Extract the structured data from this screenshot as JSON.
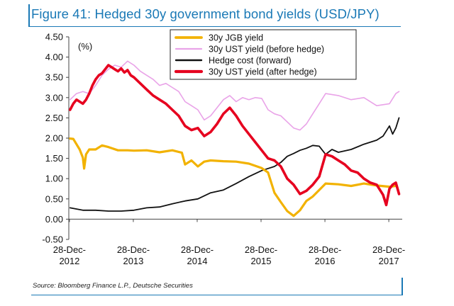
{
  "header": {
    "title": "Figure 41: Hedged 30y government bond yields (USD/JPY)"
  },
  "footer": {
    "source": "Source: Bloomberg Finance L.P., Deutsche Securities"
  },
  "colors": {
    "brand": "#1a79b6",
    "jgb": "#f2b200",
    "ust_before": "#e9a3e8",
    "hedge_cost": "#111111",
    "ust_after": "#e6001f"
  },
  "chart_data": {
    "type": "line",
    "title": "Figure 41: Hedged 30y government bond yields (USD/JPY)",
    "unit_label": "(%)",
    "xlabel": "",
    "ylabel": "(%)",
    "ylim": [
      -0.5,
      4.5
    ],
    "xlim": [
      2012.98,
      2018.2
    ],
    "y_ticks": [
      {
        "value": 4.5,
        "label": "4.50"
      },
      {
        "value": 4.0,
        "label": "4.00"
      },
      {
        "value": 3.5,
        "label": "3.50"
      },
      {
        "value": 3.0,
        "label": "3.00"
      },
      {
        "value": 2.5,
        "label": "2.50"
      },
      {
        "value": 2.0,
        "label": "2.00"
      },
      {
        "value": 1.5,
        "label": "1.50"
      },
      {
        "value": 1.0,
        "label": "1.00"
      },
      {
        "value": 0.5,
        "label": "0.50"
      },
      {
        "value": 0.0,
        "label": "0.00"
      },
      {
        "value": -0.5,
        "label": "-0.50"
      }
    ],
    "x_ticks": [
      {
        "value": 2012.99,
        "line1": "28-Dec-",
        "line2": "2012"
      },
      {
        "value": 2013.99,
        "line1": "28-Dec-",
        "line2": "2013"
      },
      {
        "value": 2014.99,
        "line1": "28-Dec-",
        "line2": "2014"
      },
      {
        "value": 2015.99,
        "line1": "28-Dec-",
        "line2": "2015"
      },
      {
        "value": 2016.99,
        "line1": "28-Dec-",
        "line2": "2016"
      },
      {
        "value": 2017.99,
        "line1": "28-Dec-",
        "line2": "2017"
      }
    ],
    "legend": {
      "placement": "top-center",
      "entries": [
        "30y JGB yield",
        "30y UST yield (before hedge)",
        "Hedge cost (forward)",
        "30y UST yield (after hedge)"
      ]
    },
    "series": [
      {
        "name": "30y JGB yield",
        "color": "#f2b200",
        "x": [
          2013.0,
          2013.05,
          2013.1,
          2013.15,
          2013.2,
          2013.22,
          2013.25,
          2013.3,
          2013.4,
          2013.5,
          2013.6,
          2013.75,
          2013.9,
          2014.0,
          2014.2,
          2014.4,
          2014.6,
          2014.75,
          2014.8,
          2014.9,
          2015.0,
          2015.1,
          2015.2,
          2015.4,
          2015.6,
          2015.8,
          2016.0,
          2016.1,
          2016.2,
          2016.3,
          2016.4,
          2016.5,
          2016.6,
          2016.7,
          2016.8,
          2016.9,
          2017.0,
          2017.2,
          2017.4,
          2017.6,
          2017.8,
          2018.0,
          2018.1
        ],
        "values": [
          1.99,
          1.98,
          1.85,
          1.72,
          1.52,
          1.25,
          1.6,
          1.72,
          1.72,
          1.82,
          1.78,
          1.7,
          1.7,
          1.69,
          1.7,
          1.65,
          1.7,
          1.64,
          1.35,
          1.45,
          1.3,
          1.42,
          1.45,
          1.43,
          1.42,
          1.37,
          1.26,
          1.15,
          0.65,
          0.42,
          0.2,
          0.08,
          0.22,
          0.45,
          0.56,
          0.72,
          0.88,
          0.86,
          0.82,
          0.88,
          0.83,
          0.8,
          0.82
        ]
      },
      {
        "name": "30y UST yield (before hedge)",
        "color": "#e9a3e8",
        "x": [
          2013.0,
          2013.1,
          2013.2,
          2013.3,
          2013.4,
          2013.5,
          2013.6,
          2013.7,
          2013.8,
          2013.9,
          2014.0,
          2014.1,
          2014.2,
          2014.3,
          2014.4,
          2014.5,
          2014.6,
          2014.7,
          2014.8,
          2014.9,
          2015.0,
          2015.1,
          2015.2,
          2015.3,
          2015.4,
          2015.5,
          2015.6,
          2015.7,
          2015.8,
          2015.9,
          2016.0,
          2016.1,
          2016.2,
          2016.3,
          2016.4,
          2016.5,
          2016.6,
          2016.7,
          2016.8,
          2016.9,
          2017.0,
          2017.2,
          2017.4,
          2017.6,
          2017.8,
          2018.0,
          2018.1,
          2018.15
        ],
        "values": [
          2.95,
          3.1,
          3.15,
          3.1,
          3.3,
          3.55,
          3.7,
          3.8,
          3.75,
          3.9,
          3.8,
          3.65,
          3.55,
          3.45,
          3.3,
          3.35,
          3.25,
          3.15,
          2.9,
          2.8,
          2.7,
          2.45,
          2.55,
          2.75,
          2.95,
          3.05,
          2.9,
          3.0,
          2.95,
          3.0,
          2.98,
          2.7,
          2.6,
          2.55,
          2.4,
          2.25,
          2.2,
          2.35,
          2.6,
          2.85,
          3.1,
          3.05,
          2.95,
          3.0,
          2.8,
          2.85,
          3.1,
          3.15
        ]
      },
      {
        "name": "Hedge cost (forward)",
        "color": "#111111",
        "x": [
          2013.0,
          2013.2,
          2013.4,
          2013.6,
          2013.8,
          2014.0,
          2014.2,
          2014.4,
          2014.6,
          2014.8,
          2015.0,
          2015.2,
          2015.4,
          2015.6,
          2015.8,
          2016.0,
          2016.2,
          2016.3,
          2016.4,
          2016.5,
          2016.6,
          2016.7,
          2016.8,
          2016.9,
          2017.0,
          2017.1,
          2017.2,
          2017.4,
          2017.6,
          2017.8,
          2017.9,
          2018.0,
          2018.05,
          2018.1,
          2018.15
        ],
        "values": [
          0.28,
          0.22,
          0.22,
          0.2,
          0.2,
          0.22,
          0.28,
          0.3,
          0.38,
          0.45,
          0.5,
          0.65,
          0.72,
          0.88,
          1.05,
          1.2,
          1.3,
          1.4,
          1.55,
          1.62,
          1.7,
          1.75,
          1.82,
          1.8,
          1.6,
          1.72,
          1.65,
          1.72,
          1.85,
          1.95,
          2.05,
          2.3,
          2.1,
          2.25,
          2.5
        ]
      },
      {
        "name": "30y UST yield (after hedge)",
        "color": "#e6001f",
        "x": [
          2013.0,
          2013.05,
          2013.1,
          2013.15,
          2013.2,
          2013.25,
          2013.3,
          2013.35,
          2013.4,
          2013.45,
          2013.5,
          2013.55,
          2013.6,
          2013.65,
          2013.7,
          2013.75,
          2013.8,
          2013.85,
          2013.9,
          2013.95,
          2014.0,
          2014.1,
          2014.2,
          2014.3,
          2014.4,
          2014.5,
          2014.6,
          2014.7,
          2014.8,
          2014.9,
          2015.0,
          2015.1,
          2015.2,
          2015.3,
          2015.4,
          2015.5,
          2015.6,
          2015.7,
          2015.8,
          2015.9,
          2016.0,
          2016.1,
          2016.2,
          2016.3,
          2016.4,
          2016.5,
          2016.6,
          2016.7,
          2016.8,
          2016.9,
          2017.0,
          2017.1,
          2017.2,
          2017.3,
          2017.4,
          2017.5,
          2017.6,
          2017.7,
          2017.8,
          2017.9,
          2017.95,
          2018.0,
          2018.05,
          2018.1,
          2018.15
        ],
        "values": [
          2.7,
          2.85,
          2.95,
          2.9,
          2.85,
          2.95,
          3.1,
          3.3,
          3.45,
          3.55,
          3.6,
          3.7,
          3.8,
          3.75,
          3.7,
          3.65,
          3.72,
          3.62,
          3.68,
          3.55,
          3.5,
          3.35,
          3.2,
          3.05,
          2.95,
          2.85,
          2.7,
          2.55,
          2.3,
          2.2,
          2.25,
          2.05,
          2.15,
          2.35,
          2.6,
          2.75,
          2.55,
          2.3,
          2.1,
          1.9,
          1.7,
          1.5,
          1.45,
          1.3,
          1.0,
          0.85,
          0.62,
          0.7,
          0.85,
          1.05,
          1.6,
          1.55,
          1.45,
          1.35,
          1.2,
          1.15,
          1.0,
          0.9,
          0.85,
          0.6,
          0.35,
          0.75,
          0.85,
          0.9,
          0.62
        ]
      }
    ]
  }
}
